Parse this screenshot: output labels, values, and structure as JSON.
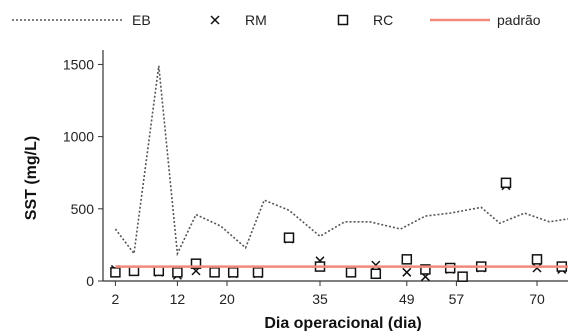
{
  "chart_data": {
    "type": "line",
    "title": "",
    "xlabel": "Dia operacional (dia)",
    "ylabel": "SST (mg/L)",
    "xlim": [
      0,
      75
    ],
    "ylim": [
      0,
      1600
    ],
    "xticks": [
      2,
      12,
      20,
      35,
      49,
      57,
      70
    ],
    "yticks": [
      0,
      500,
      1000,
      1500
    ],
    "legend_position": "top",
    "series": [
      {
        "name": "EB",
        "style": "dotted-line",
        "color": "#555555",
        "x": [
          2,
          5,
          9,
          12,
          15,
          19,
          23,
          26,
          30,
          35,
          39,
          43,
          48,
          52,
          56,
          61,
          64,
          68,
          72,
          75
        ],
        "y": [
          360,
          190,
          1490,
          190,
          460,
          380,
          230,
          560,
          490,
          310,
          410,
          410,
          360,
          450,
          470,
          510,
          400,
          470,
          410,
          430
        ]
      },
      {
        "name": "RM",
        "style": "x-marker",
        "color": "#111111",
        "x": [
          2,
          5,
          9,
          12,
          15,
          18,
          21,
          25,
          30,
          35,
          40,
          44,
          49,
          52,
          56,
          61,
          65,
          70,
          74
        ],
        "y": [
          80,
          70,
          60,
          40,
          70,
          60,
          50,
          50,
          290,
          140,
          60,
          110,
          60,
          30,
          80,
          90,
          660,
          90,
          80
        ]
      },
      {
        "name": "RC",
        "style": "square-marker",
        "color": "#111111",
        "x": [
          2,
          5,
          9,
          12,
          15,
          18,
          21,
          25,
          30,
          35,
          40,
          44,
          49,
          52,
          56,
          58,
          61,
          65,
          70,
          74
        ],
        "y": [
          60,
          70,
          70,
          60,
          120,
          60,
          60,
          60,
          300,
          100,
          60,
          50,
          150,
          80,
          90,
          30,
          100,
          680,
          150,
          100
        ]
      },
      {
        "name": "padrão",
        "style": "solid-line",
        "color": "#f28a7a",
        "x": [
          2,
          75
        ],
        "y": [
          100,
          100
        ]
      }
    ]
  }
}
